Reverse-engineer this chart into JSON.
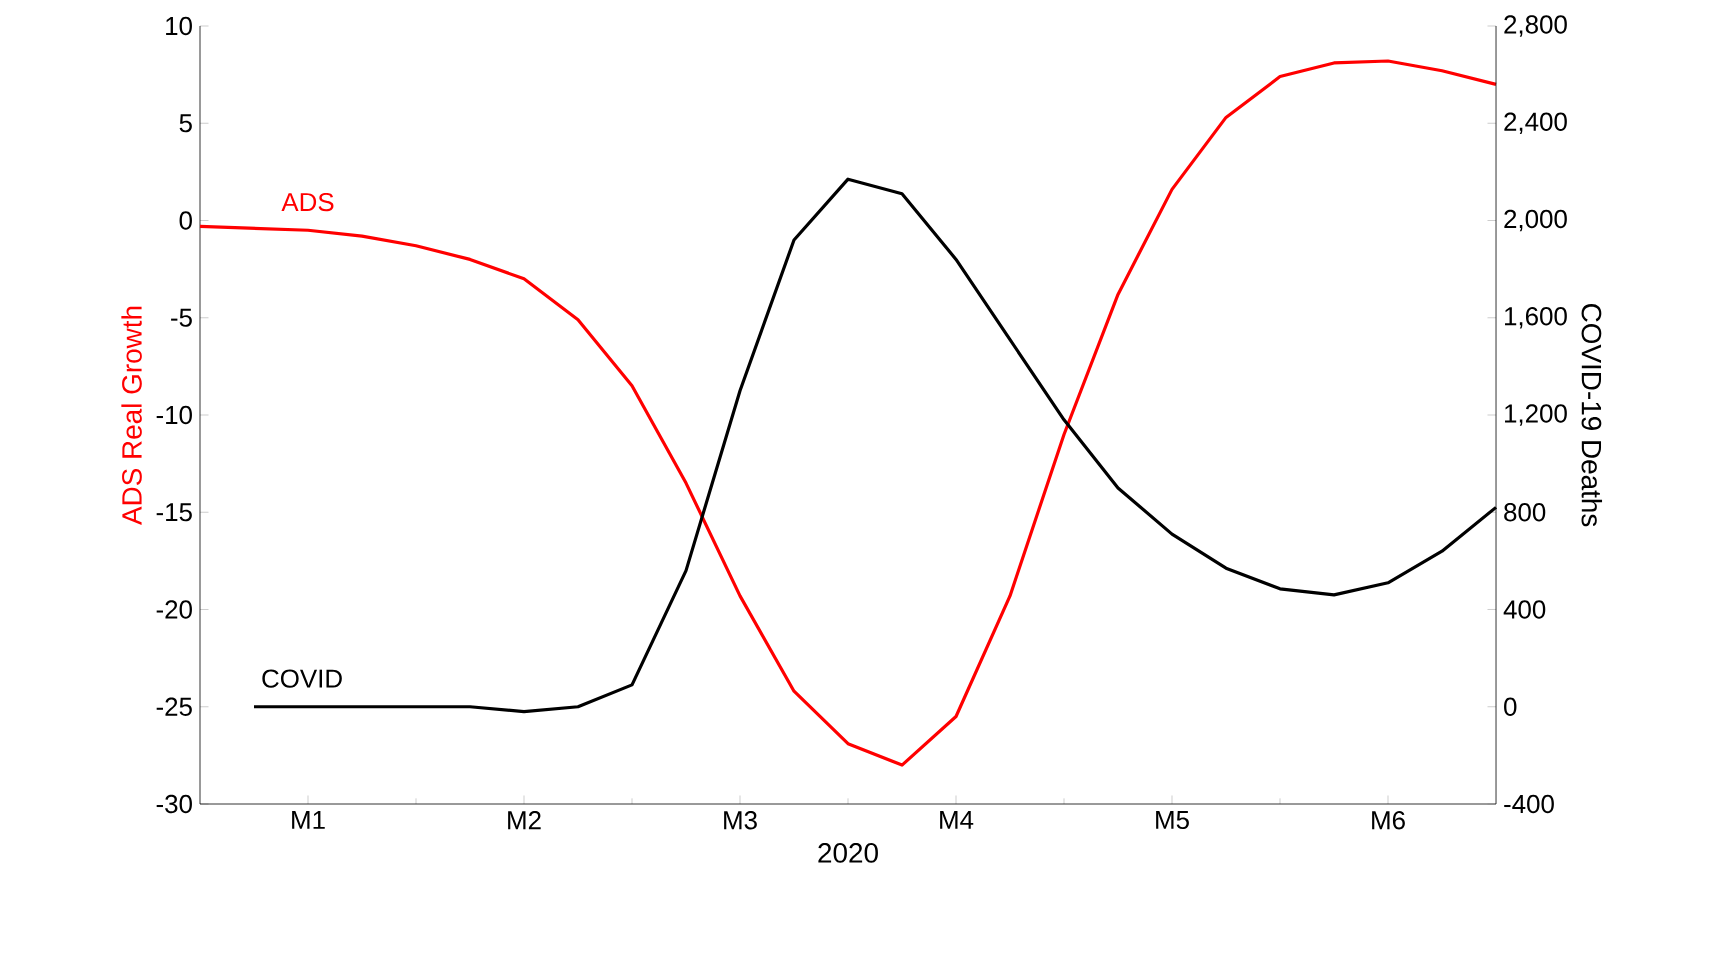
{
  "chart_data": {
    "type": "line",
    "xlabel": "2020",
    "ylabel": "ADS Real Growth",
    "y2label": "COVID-19 Deaths",
    "categories": [
      null,
      null,
      "M1",
      null,
      null,
      null,
      "M2",
      null,
      null,
      null,
      "M3",
      null,
      null,
      null,
      "M4",
      null,
      null,
      null,
      "M5",
      null,
      null,
      null,
      "M6",
      null,
      null
    ],
    "ylim": [
      -30,
      10
    ],
    "yticks": [
      -30,
      -25,
      -20,
      -15,
      -10,
      -5,
      0,
      5,
      10
    ],
    "y2lim": [
      -400,
      2800
    ],
    "y2ticks": [
      {
        "value": -400,
        "label": "-400"
      },
      {
        "value": 0,
        "label": "0"
      },
      {
        "value": 400,
        "label": "400"
      },
      {
        "value": 800,
        "label": "800"
      },
      {
        "value": 1200,
        "label": "1,200"
      },
      {
        "value": 1600,
        "label": "1,600"
      },
      {
        "value": 2000,
        "label": "2,000"
      },
      {
        "value": 2400,
        "label": "2,400"
      },
      {
        "value": 2800,
        "label": "2,800"
      }
    ],
    "grid": false,
    "marker": "none",
    "line_style": "solid",
    "series": [
      {
        "name": "ADS",
        "color": "#ff0000",
        "values": [
          -0.3,
          -0.4,
          -0.5,
          -0.8,
          -1.3,
          -2.0,
          -3.0,
          -5.1,
          -8.5,
          -13.5,
          -19.3,
          -24.2,
          -26.9,
          -28,
          -25.5,
          -19.3,
          -11,
          -3.8,
          1.6,
          5.3,
          7.4,
          8.1,
          8.2,
          7.7,
          7.0
        ]
      },
      {
        "name": "COVID",
        "color": "#000000",
        "axis": "y2",
        "values": [
          null,
          0,
          0,
          0,
          0,
          0,
          -20,
          0,
          90,
          560,
          1300,
          1920,
          2170,
          2110,
          1840,
          1510,
          1180,
          900,
          710,
          570,
          485,
          460,
          510,
          640,
          820
        ]
      }
    ]
  }
}
